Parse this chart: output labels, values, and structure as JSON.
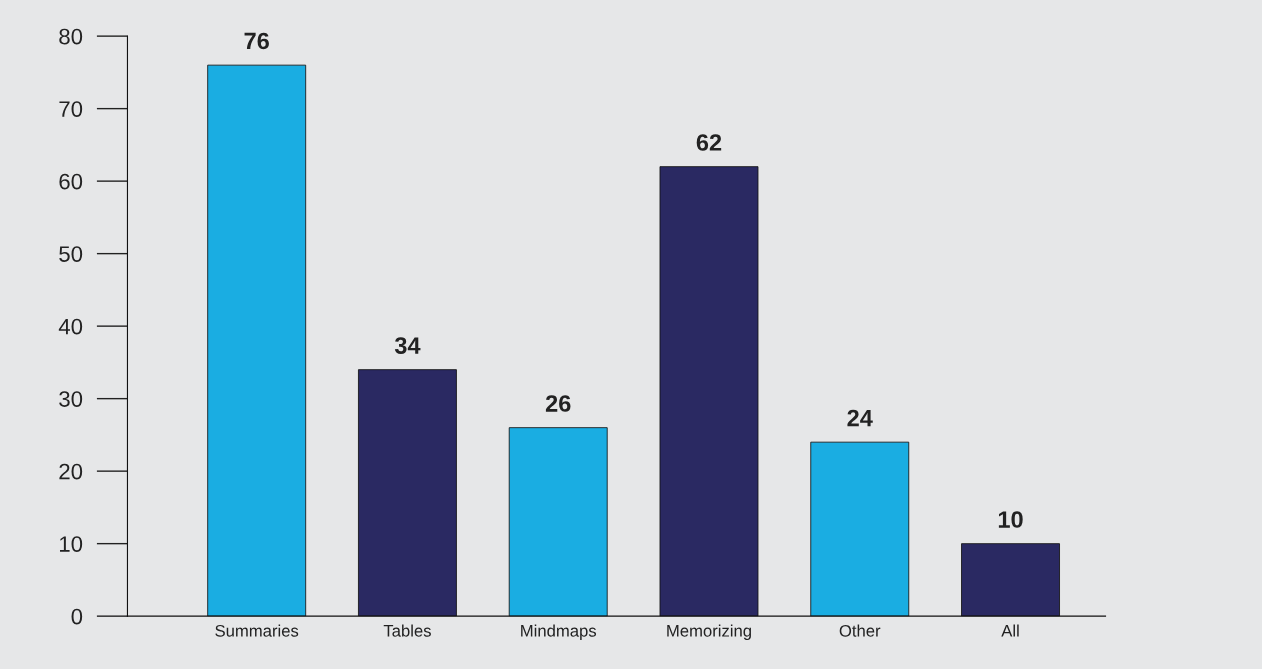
{
  "chart_data": {
    "type": "bar",
    "categories": [
      "Summaries",
      "Tables",
      "Mindmaps",
      "Memorizing",
      "Other",
      "All"
    ],
    "values": [
      76,
      34,
      26,
      62,
      24,
      10
    ],
    "colors": [
      "#1aade2",
      "#2a2962",
      "#1aade2",
      "#2a2962",
      "#1aade2",
      "#2a2962"
    ],
    "ylim": [
      0,
      80
    ],
    "yticks": [
      0,
      10,
      20,
      30,
      40,
      50,
      60,
      70,
      80
    ],
    "data_labels": true,
    "grid": false
  }
}
